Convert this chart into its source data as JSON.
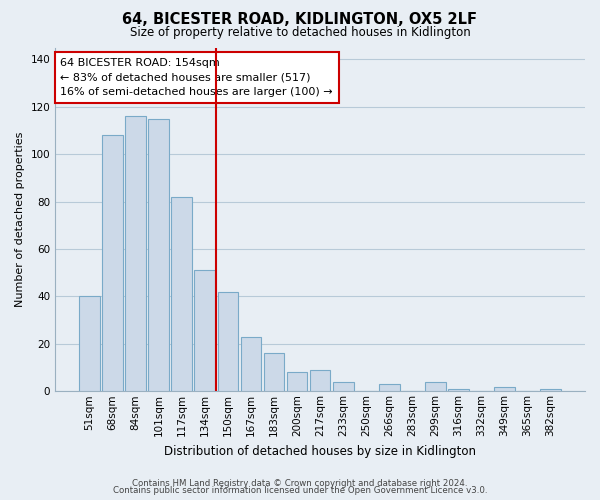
{
  "title": "64, BICESTER ROAD, KIDLINGTON, OX5 2LF",
  "subtitle": "Size of property relative to detached houses in Kidlington",
  "xlabel": "Distribution of detached houses by size in Kidlington",
  "ylabel": "Number of detached properties",
  "bar_labels": [
    "51sqm",
    "68sqm",
    "84sqm",
    "101sqm",
    "117sqm",
    "134sqm",
    "150sqm",
    "167sqm",
    "183sqm",
    "200sqm",
    "217sqm",
    "233sqm",
    "250sqm",
    "266sqm",
    "283sqm",
    "299sqm",
    "316sqm",
    "332sqm",
    "349sqm",
    "365sqm",
    "382sqm"
  ],
  "bar_values": [
    40,
    108,
    116,
    115,
    82,
    51,
    42,
    23,
    16,
    8,
    9,
    4,
    0,
    3,
    0,
    4,
    1,
    0,
    2,
    0,
    1
  ],
  "bar_color": "#ccd9e8",
  "bar_edge_color": "#7aaac8",
  "ref_line_x": 5.5,
  "ref_line_color": "#cc0000",
  "annotation_title": "64 BICESTER ROAD: 154sqm",
  "annotation_line1": "← 83% of detached houses are smaller (517)",
  "annotation_line2": "16% of semi-detached houses are larger (100) →",
  "annotation_box_color": "#ffffff",
  "annotation_box_edgecolor": "#cc0000",
  "ylim": [
    0,
    145
  ],
  "yticks": [
    0,
    20,
    40,
    60,
    80,
    100,
    120,
    140
  ],
  "footer_line1": "Contains HM Land Registry data © Crown copyright and database right 2024.",
  "footer_line2": "Contains public sector information licensed under the Open Government Licence v3.0.",
  "bg_color": "#e8eef4",
  "plot_bg_color": "#e8eef4",
  "grid_color": "#b8cad8",
  "spine_color": "#9ab0c0"
}
